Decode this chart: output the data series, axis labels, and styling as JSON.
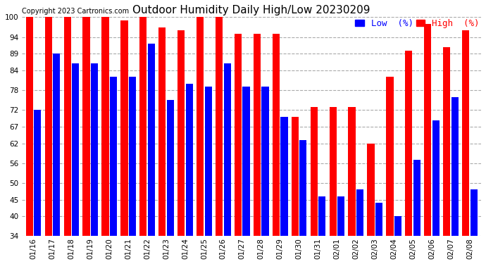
{
  "title": "Outdoor Humidity Daily High/Low 20230209",
  "copyright": "Copyright 2023 Cartronics.com",
  "legend_low": "Low  (%)",
  "legend_high": "High  (%)",
  "dates": [
    "01/16",
    "01/17",
    "01/18",
    "01/19",
    "01/20",
    "01/21",
    "01/22",
    "01/23",
    "01/24",
    "01/25",
    "01/26",
    "01/27",
    "01/28",
    "01/29",
    "01/30",
    "01/31",
    "02/01",
    "02/02",
    "02/03",
    "02/04",
    "02/05",
    "02/06",
    "02/07",
    "02/08"
  ],
  "high_values": [
    100,
    100,
    100,
    100,
    100,
    99,
    100,
    97,
    96,
    100,
    100,
    95,
    95,
    95,
    70,
    73,
    73,
    73,
    62,
    82,
    90,
    98,
    91,
    96
  ],
  "low_values": [
    72,
    89,
    86,
    86,
    82,
    82,
    92,
    75,
    80,
    79,
    86,
    79,
    79,
    70,
    63,
    46,
    46,
    48,
    44,
    40,
    57,
    69,
    76,
    48
  ],
  "ylim": [
    34,
    100
  ],
  "yticks": [
    34,
    40,
    45,
    50,
    56,
    62,
    67,
    72,
    78,
    84,
    89,
    94,
    100
  ],
  "bar_color_high": "#FF0000",
  "bar_color_low": "#0000FF",
  "background_color": "#FFFFFF",
  "grid_color": "#AAAAAA",
  "title_fontsize": 11,
  "tick_fontsize": 7.5,
  "legend_fontsize": 9,
  "copyright_fontsize": 7
}
